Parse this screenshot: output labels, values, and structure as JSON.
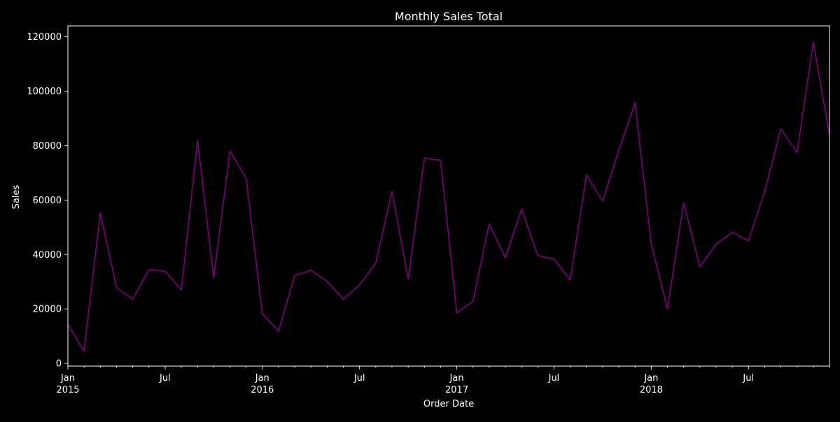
{
  "chart_data": {
    "type": "line",
    "title": "Monthly Sales Total",
    "xlabel": "Order Date",
    "ylabel": "Sales",
    "x_start": "2015-01",
    "x_end": "2018-12",
    "ylim": [
      -1000,
      124000
    ],
    "yticks": [
      0,
      20000,
      40000,
      60000,
      80000,
      100000,
      120000
    ],
    "ytick_labels": [
      "0",
      "20000",
      "40000",
      "60000",
      "80000",
      "100000",
      "120000"
    ],
    "xticks": [
      {
        "month": "2015-01",
        "label": "Jan",
        "sublabel": "2015"
      },
      {
        "month": "2015-07",
        "label": "Jul",
        "sublabel": ""
      },
      {
        "month": "2016-01",
        "label": "Jan",
        "sublabel": "2016"
      },
      {
        "month": "2016-07",
        "label": "Jul",
        "sublabel": ""
      },
      {
        "month": "2017-01",
        "label": "Jan",
        "sublabel": "2017"
      },
      {
        "month": "2017-07",
        "label": "Jul",
        "sublabel": ""
      },
      {
        "month": "2018-01",
        "label": "Jan",
        "sublabel": "2018"
      },
      {
        "month": "2018-07",
        "label": "Jul",
        "sublabel": ""
      }
    ],
    "grid": false,
    "line_color": "#800080",
    "background": "#000000",
    "foreground": "#ffffff",
    "x": [
      "2015-01",
      "2015-02",
      "2015-03",
      "2015-04",
      "2015-05",
      "2015-06",
      "2015-07",
      "2015-08",
      "2015-09",
      "2015-10",
      "2015-11",
      "2015-12",
      "2016-01",
      "2016-02",
      "2016-03",
      "2016-04",
      "2016-05",
      "2016-06",
      "2016-07",
      "2016-08",
      "2016-09",
      "2016-10",
      "2016-11",
      "2016-12",
      "2017-01",
      "2017-02",
      "2017-03",
      "2017-04",
      "2017-05",
      "2017-06",
      "2017-07",
      "2017-08",
      "2017-09",
      "2017-10",
      "2017-11",
      "2017-12",
      "2018-01",
      "2018-02",
      "2018-03",
      "2018-04",
      "2018-05",
      "2018-06",
      "2018-07",
      "2018-08",
      "2018-09",
      "2018-10",
      "2018-11",
      "2018-12"
    ],
    "values": [
      14200,
      4500,
      55300,
      27900,
      23600,
      34400,
      33900,
      27000,
      81800,
      31500,
      78000,
      68000,
      18200,
      11900,
      32300,
      34200,
      30100,
      23600,
      28800,
      36800,
      63200,
      31000,
      75400,
      74600,
      18500,
      22900,
      51200,
      38800,
      56700,
      39600,
      38300,
      30600,
      69200,
      59600,
      78300,
      95700,
      43900,
      20000,
      58900,
      35500,
      43800,
      48200,
      45000,
      63100,
      86200,
      77400,
      118100,
      83800
    ]
  }
}
